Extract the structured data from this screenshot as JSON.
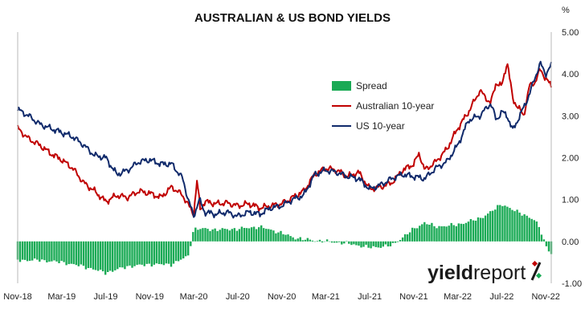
{
  "chart_data": {
    "type": "line",
    "title": "AUSTRALIAN & US BOND YIELDS",
    "y_unit_label": "%",
    "ylim": [
      -1.0,
      5.0
    ],
    "y_ticks": [
      "5.00",
      "4.00",
      "3.00",
      "2.00",
      "1.00",
      "0.00",
      "-1.00"
    ],
    "y_tick_values": [
      5,
      4,
      3,
      2,
      1,
      0,
      -1
    ],
    "x_ticks": [
      "Nov-18",
      "Mar-19",
      "Jul-19",
      "Nov-19",
      "Mar-20",
      "Jul-20",
      "Nov-20",
      "Mar-21",
      "Jul-21",
      "Nov-21",
      "Mar-22",
      "Jul-22",
      "Nov-22"
    ],
    "x_tick_month_index": [
      0,
      4,
      8,
      12,
      16,
      20,
      24,
      28,
      32,
      36,
      40,
      44,
      48
    ],
    "x_range_month_index": [
      0,
      48.5
    ],
    "grid": false,
    "legend_position": "top-center",
    "series": [
      {
        "name": "Spread",
        "style": "bar",
        "color": "#1aaa55",
        "month_index": [
          0,
          2,
          4,
          6,
          8,
          10,
          12,
          14,
          15.5,
          16,
          17,
          18,
          20,
          22,
          24,
          25,
          26,
          28,
          30,
          32,
          34,
          36,
          37,
          38,
          40,
          42,
          43,
          44,
          45,
          46,
          47,
          47.5,
          48,
          48.5
        ],
        "values": [
          -0.45,
          -0.45,
          -0.5,
          -0.6,
          -0.75,
          -0.6,
          -0.55,
          -0.55,
          -0.35,
          0.3,
          0.3,
          0.28,
          0.3,
          0.35,
          0.2,
          0.1,
          0.05,
          0.0,
          -0.05,
          -0.15,
          -0.1,
          0.3,
          0.45,
          0.35,
          0.4,
          0.55,
          0.7,
          0.9,
          0.75,
          0.65,
          0.5,
          0.3,
          -0.1,
          -0.3
        ]
      },
      {
        "name": "Australian 10-year",
        "style": "line",
        "color": "#c00000",
        "month_index": [
          0,
          1,
          2,
          3,
          4,
          5,
          6,
          7,
          8,
          9,
          10,
          11,
          12,
          13,
          14,
          15,
          16,
          16.3,
          16.6,
          17,
          18,
          19,
          20,
          21,
          22,
          23,
          24,
          25,
          26,
          27,
          28,
          29,
          30,
          31,
          32,
          33,
          34,
          35,
          36,
          36.5,
          37,
          38,
          39,
          40,
          40.5,
          41,
          42,
          43,
          43.5,
          44,
          44.5,
          45,
          46,
          46.5,
          47,
          47.5,
          48,
          48.5
        ],
        "values": [
          2.7,
          2.45,
          2.3,
          2.1,
          1.95,
          1.75,
          1.4,
          1.2,
          0.95,
          1.1,
          1.05,
          1.2,
          1.15,
          1.05,
          1.3,
          1.1,
          0.65,
          1.45,
          0.75,
          0.95,
          0.9,
          0.92,
          0.85,
          0.9,
          0.8,
          0.85,
          0.9,
          1.05,
          1.2,
          1.6,
          1.75,
          1.7,
          1.55,
          1.65,
          1.25,
          1.3,
          1.4,
          1.7,
          1.85,
          2.1,
          1.7,
          1.9,
          2.2,
          2.7,
          2.9,
          3.1,
          3.6,
          3.3,
          3.8,
          3.7,
          4.3,
          3.4,
          3.0,
          3.7,
          3.8,
          4.1,
          3.9,
          3.7
        ]
      },
      {
        "name": "US 10-year",
        "style": "line",
        "color": "#102a6b",
        "month_index": [
          0,
          1,
          2,
          3,
          4,
          5,
          6,
          7,
          8,
          9,
          10,
          11,
          12,
          13,
          14,
          15,
          15.5,
          16,
          16.5,
          17,
          18,
          19,
          20,
          21,
          22,
          23,
          24,
          25,
          26,
          27,
          28,
          29,
          30,
          31,
          32,
          33,
          34,
          35,
          36,
          37,
          38,
          39,
          40,
          41,
          42,
          43,
          43.5,
          44,
          44.5,
          45,
          46,
          46.5,
          47,
          47.5,
          48,
          48.5
        ],
        "values": [
          3.15,
          3.0,
          2.8,
          2.7,
          2.6,
          2.5,
          2.3,
          2.05,
          2.0,
          1.6,
          1.7,
          1.9,
          1.95,
          1.85,
          1.85,
          1.5,
          1.0,
          0.6,
          1.0,
          0.7,
          0.65,
          0.7,
          0.6,
          0.7,
          0.65,
          0.8,
          0.85,
          1.0,
          1.1,
          1.6,
          1.7,
          1.65,
          1.55,
          1.5,
          1.25,
          1.35,
          1.5,
          1.6,
          1.55,
          1.5,
          1.75,
          1.9,
          2.3,
          2.9,
          3.0,
          3.3,
          2.9,
          3.1,
          3.0,
          2.65,
          3.2,
          3.5,
          3.9,
          4.25,
          4.0,
          4.2
        ]
      }
    ],
    "watermark": "yieldreport %"
  }
}
